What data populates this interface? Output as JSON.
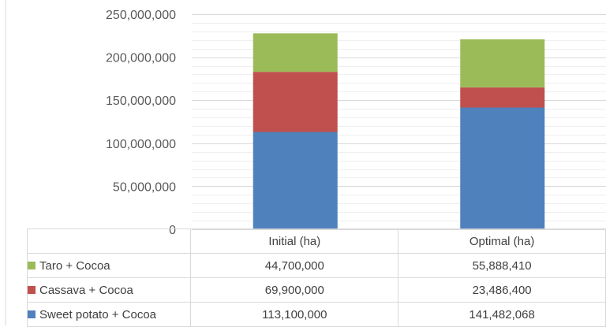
{
  "chart_data": {
    "type": "bar",
    "stacked": true,
    "categories": [
      "Initial (ha)",
      "Optimal (ha)"
    ],
    "series": [
      {
        "name": "Sweet potato + Cocoa",
        "color": "#4f81bd",
        "values": [
          113100000,
          141482068
        ],
        "labels": [
          "113,100,000",
          "141,482,068"
        ]
      },
      {
        "name": "Cassava + Cocoa",
        "color": "#c0504d",
        "values": [
          69900000,
          23486400
        ],
        "labels": [
          "69,900,000",
          "23,486,400"
        ]
      },
      {
        "name": "Taro + Cocoa",
        "color": "#9bbb59",
        "values": [
          44700000,
          55888410
        ],
        "labels": [
          "44,700,000",
          "55,888,410"
        ]
      }
    ],
    "ylim": [
      0,
      250000000
    ],
    "yticks": [
      0,
      50000000,
      100000000,
      150000000,
      200000000,
      250000000
    ],
    "ytick_labels": [
      "0",
      "50,000,000",
      "100,000,000",
      "150,000,000",
      "200,000,000",
      "250,000,000"
    ],
    "grid": true,
    "legend": "data table below chart",
    "title": "",
    "xlabel": "",
    "ylabel": ""
  }
}
